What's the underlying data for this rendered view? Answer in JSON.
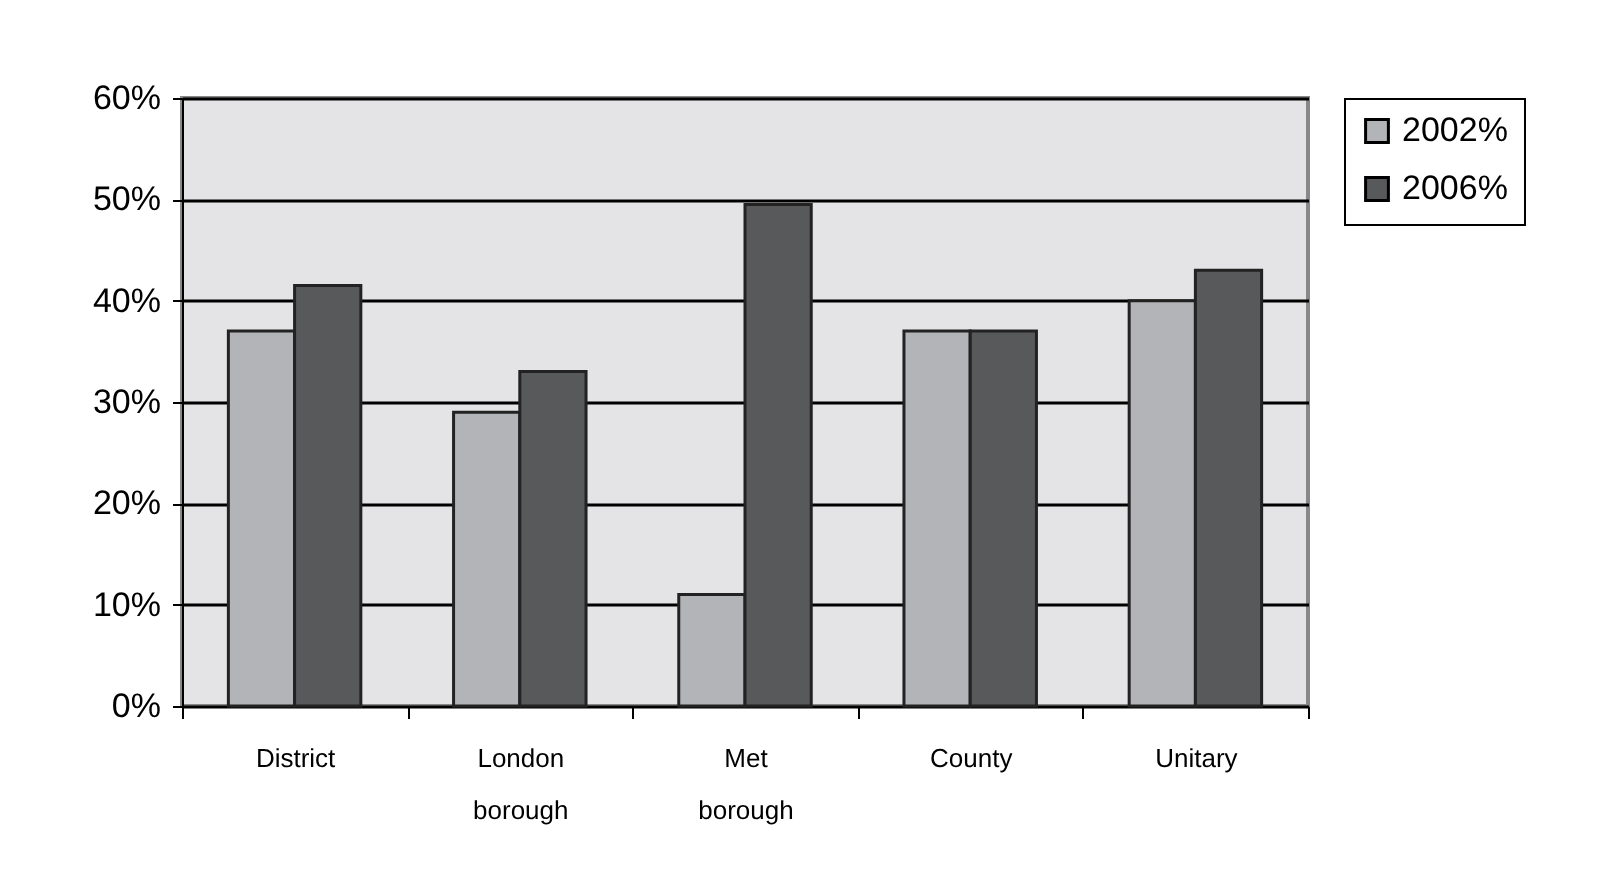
{
  "chart_data": {
    "type": "bar",
    "categories": [
      "District",
      "London borough",
      "Met borough",
      "County",
      "Unitary"
    ],
    "series": [
      {
        "name": "2002%",
        "color": "#b3b4b8",
        "values": [
          37,
          29,
          11,
          37,
          40
        ]
      },
      {
        "name": "2006%",
        "color": "#58595b",
        "values": [
          41.5,
          33,
          49.5,
          37,
          43
        ]
      }
    ],
    "ylim": [
      0,
      60
    ],
    "yticks": [
      {
        "value": 0,
        "label": "0%"
      },
      {
        "value": 10,
        "label": "10%"
      },
      {
        "value": 20,
        "label": "20%"
      },
      {
        "value": 30,
        "label": "30%"
      },
      {
        "value": 40,
        "label": "40%"
      },
      {
        "value": 50,
        "label": "50%"
      },
      {
        "value": 60,
        "label": "60%"
      }
    ],
    "grid": "y",
    "legend": "right"
  }
}
